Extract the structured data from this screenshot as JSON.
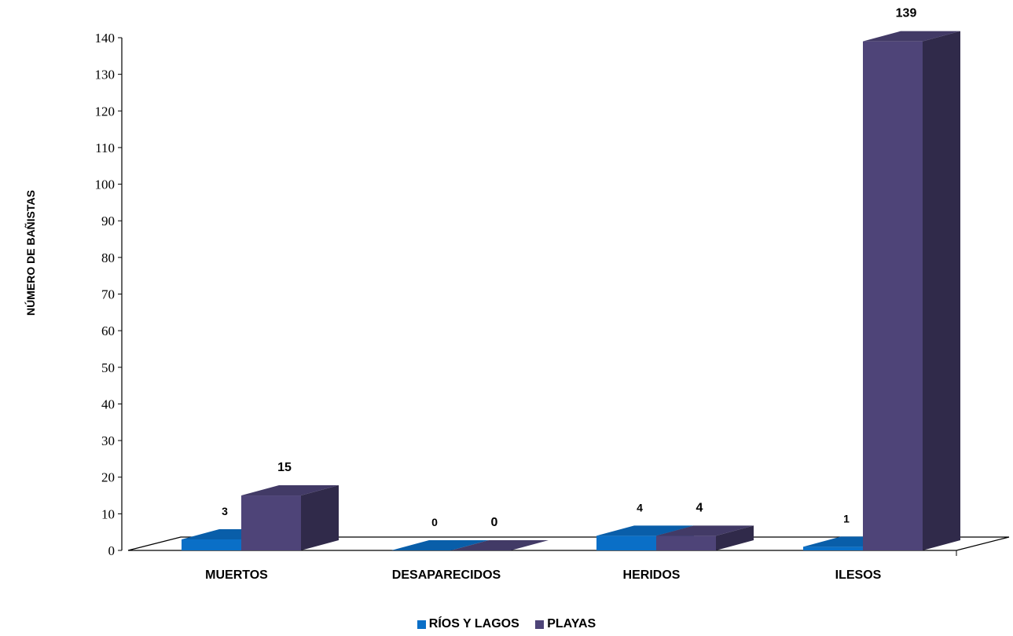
{
  "chart_data": {
    "type": "bar",
    "categories": [
      "MUERTOS",
      "DESAPARECIDOS",
      "HERIDOS",
      "ILESOS"
    ],
    "series": [
      {
        "name": "RÍOS Y LAGOS",
        "values": [
          3,
          0,
          4,
          1
        ],
        "color": "#0a6fc7"
      },
      {
        "name": "PLAYAS",
        "values": [
          15,
          0,
          4,
          139
        ],
        "color": "#4e4478"
      }
    ],
    "ylabel": "NÚMERO DE BAÑISTAS",
    "xlabel": "",
    "ylim": [
      0,
      140
    ],
    "yticks": [
      0,
      10,
      20,
      30,
      40,
      50,
      60,
      70,
      80,
      90,
      100,
      110,
      120,
      130,
      140
    ],
    "grid": false,
    "three_d": true,
    "legend_position": "bottom"
  }
}
